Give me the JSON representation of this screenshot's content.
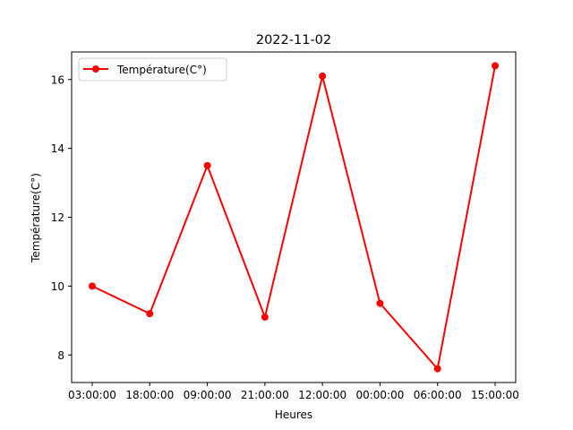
{
  "chart_data": {
    "type": "line",
    "title": "2022-11-02",
    "xlabel": "Heures",
    "ylabel": "Température(C°)",
    "categories": [
      "03:00:00",
      "18:00:00",
      "09:00:00",
      "21:00:00",
      "12:00:00",
      "00:00:00",
      "06:00:00",
      "15:00:00"
    ],
    "series": [
      {
        "name": "Température(C°)",
        "color": "#ff0000",
        "marker": "circle",
        "values": [
          10.0,
          9.2,
          13.5,
          9.1,
          16.1,
          9.5,
          7.6,
          16.4
        ]
      }
    ],
    "ylim": [
      7.2,
      16.8
    ],
    "yticks": [
      8,
      10,
      12,
      14,
      16
    ],
    "grid": false,
    "legend_position": "top-left"
  }
}
